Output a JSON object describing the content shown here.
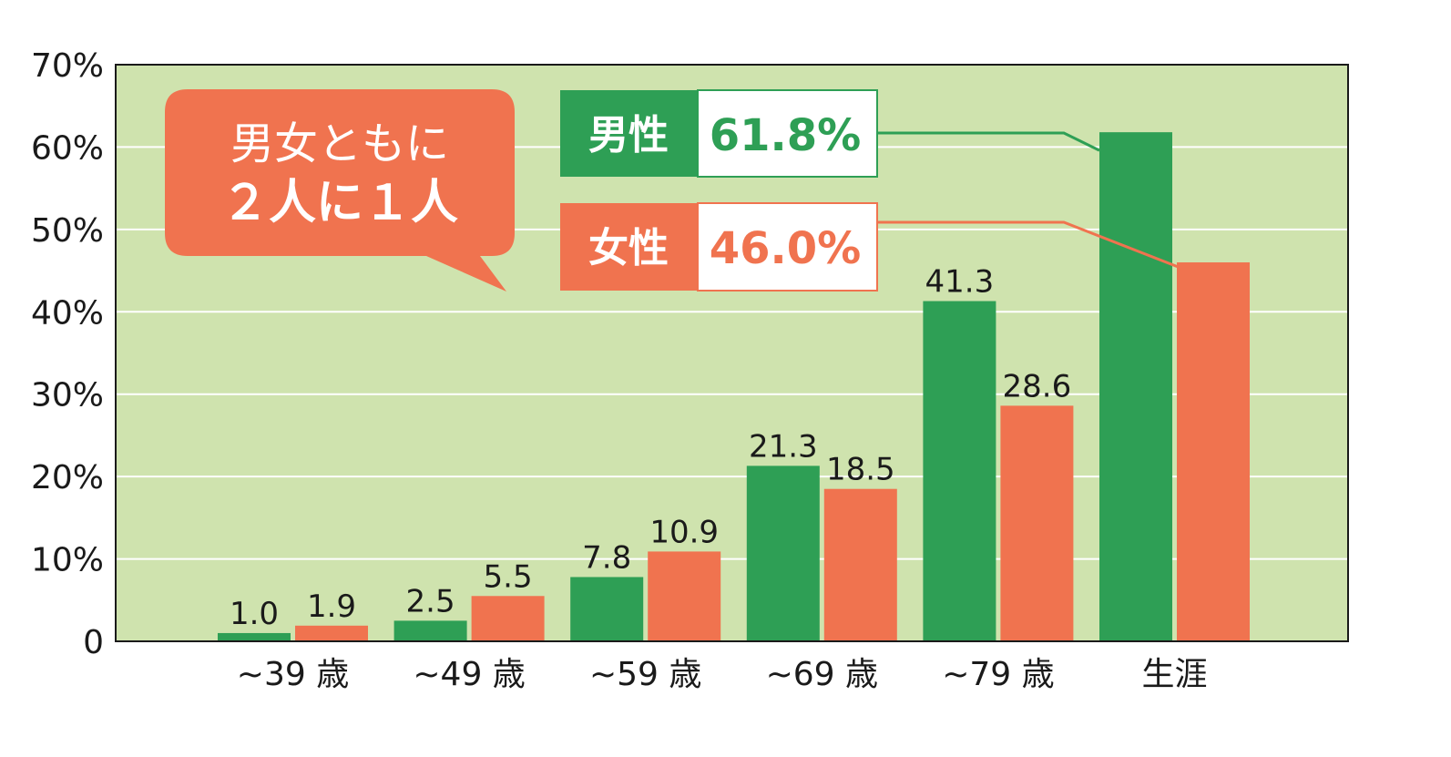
{
  "chart_data": {
    "type": "bar",
    "categories": [
      "~39 歳",
      "~49 歳",
      "~59 歳",
      "~69 歳",
      "~79 歳",
      "生涯"
    ],
    "series": [
      {
        "name": "男性",
        "values": [
          1.0,
          2.5,
          7.8,
          21.3,
          41.3,
          61.8
        ],
        "labels": [
          "1.0",
          "2.5",
          "7.8",
          "21.3",
          "41.3",
          ""
        ],
        "color": "#2e9f55"
      },
      {
        "name": "女性",
        "values": [
          1.9,
          5.5,
          10.9,
          18.5,
          28.6,
          46.0
        ],
        "labels": [
          "1.9",
          "5.5",
          "10.9",
          "18.5",
          "28.6",
          ""
        ],
        "color": "#f0734f"
      }
    ],
    "ylim": [
      0,
      70
    ],
    "yticks": [
      {
        "value": 0,
        "label": "0"
      },
      {
        "value": 10,
        "label": "10%"
      },
      {
        "value": 20,
        "label": "20%"
      },
      {
        "value": 30,
        "label": "30%"
      },
      {
        "value": 40,
        "label": "40%"
      },
      {
        "value": 50,
        "label": "50%"
      },
      {
        "value": 60,
        "label": "60%"
      },
      {
        "value": 70,
        "label": "70%"
      }
    ],
    "grid": true,
    "background_color": "#cfe3ae",
    "legend": [
      {
        "title": "男性",
        "value": "61.8%",
        "color": "#2e9f55"
      },
      {
        "title": "女性",
        "value": "46.0%",
        "color": "#f0734f"
      }
    ],
    "callout": {
      "line1": "男女ともに",
      "line2": "２人に１人",
      "color": "#f0734f"
    }
  }
}
